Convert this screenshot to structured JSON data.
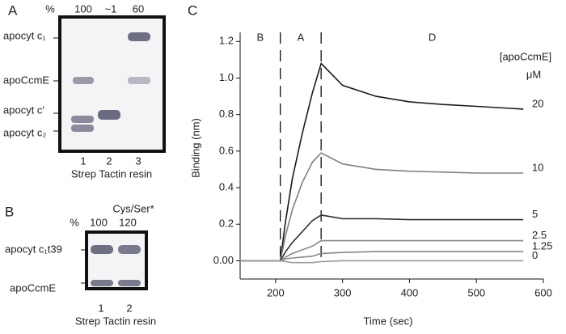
{
  "panel_a": {
    "letter": "A",
    "percent_header": "%",
    "percents": [
      "100",
      "~1",
      "60"
    ],
    "rows": [
      "apocyt c₁",
      "apoCcmE",
      "apocyt c′",
      "apocyt c₂"
    ],
    "lanes": [
      "1",
      "2",
      "3"
    ],
    "caption": "Strep Tactin resin"
  },
  "panel_b": {
    "letter": "B",
    "percent_header": "%",
    "header": "Cys/Ser*",
    "percents": [
      "100",
      "120"
    ],
    "rows": [
      "apocyt c₁t39",
      "apoCcmE"
    ],
    "lanes": [
      "1",
      "2"
    ],
    "caption": "Strep Tactin resin"
  },
  "chart_data": {
    "type": "line",
    "letter": "C",
    "x_label": "Time (sec)",
    "y_label": "Binding (nm)",
    "legend_title": "[apoCcmE]",
    "legend_unit": "μM",
    "phases": [
      "B",
      "A",
      "D"
    ],
    "phase_bounds": [
      207,
      268
    ],
    "x": [
      147,
      180,
      207,
      215,
      225,
      240,
      255,
      268,
      300,
      350,
      400,
      450,
      500,
      570
    ],
    "series": [
      {
        "name": "20",
        "color": "#1a1a1a",
        "values": [
          0,
          0,
          0,
          0.22,
          0.45,
          0.7,
          0.92,
          1.08,
          0.96,
          0.9,
          0.87,
          0.855,
          0.845,
          0.83
        ]
      },
      {
        "name": "10",
        "color": "#808080",
        "values": [
          0,
          0,
          0,
          0.14,
          0.28,
          0.43,
          0.54,
          0.59,
          0.53,
          0.5,
          0.49,
          0.485,
          0.48,
          0.48
        ]
      },
      {
        "name": "5",
        "color": "#333333",
        "values": [
          0,
          0,
          0,
          0.05,
          0.1,
          0.16,
          0.22,
          0.25,
          0.23,
          0.23,
          0.225,
          0.225,
          0.225,
          0.225
        ]
      },
      {
        "name": "2.5",
        "color": "#888888",
        "values": [
          0,
          0,
          0,
          0.02,
          0.04,
          0.06,
          0.08,
          0.11,
          0.11,
          0.11,
          0.11,
          0.11,
          0.11,
          0.11
        ]
      },
      {
        "name": "1.25",
        "color": "#888888",
        "values": [
          0,
          0,
          0,
          0.01,
          0.015,
          0.02,
          0.025,
          0.04,
          0.045,
          0.05,
          0.05,
          0.05,
          0.05,
          0.05
        ]
      },
      {
        "name": "0",
        "color": "#999999",
        "values": [
          0,
          0,
          0,
          -0.005,
          -0.01,
          -0.01,
          -0.01,
          -0.005,
          0,
          0,
          0,
          0,
          0,
          0
        ]
      }
    ],
    "xlim": [
      147,
      600
    ],
    "xticks": [
      200,
      300,
      400,
      500,
      600
    ],
    "ylim": [
      -0.1,
      1.25
    ],
    "yticks": [
      {
        "value": 0,
        "label": "0.00"
      },
      0.2,
      0.4,
      0.6,
      0.8,
      {
        "value": 1,
        "label": "1.0"
      },
      1.2
    ]
  }
}
